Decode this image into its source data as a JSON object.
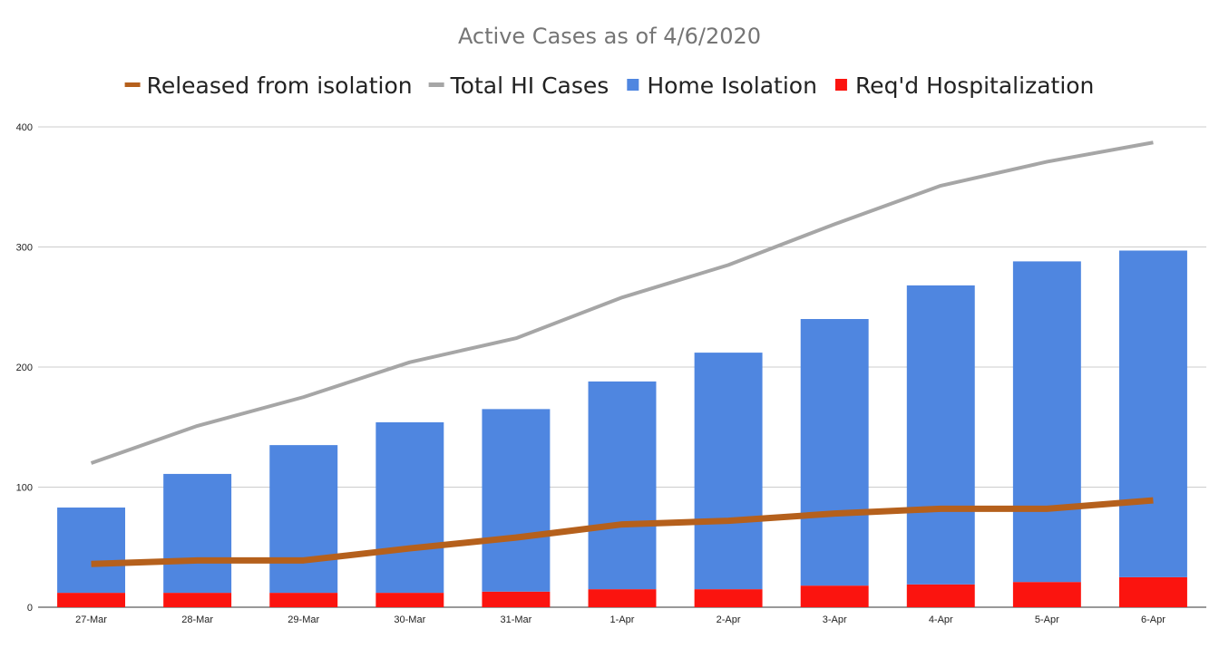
{
  "chart_data": {
    "type": "bar",
    "title": "Active Cases as of 4/6/2020",
    "stacked": true,
    "categories": [
      "27-Mar",
      "28-Mar",
      "29-Mar",
      "30-Mar",
      "31-Mar",
      "1-Apr",
      "2-Apr",
      "3-Apr",
      "4-Apr",
      "5-Apr",
      "6-Apr"
    ],
    "ylim": [
      0,
      400
    ],
    "yticks": [
      "0",
      "100",
      "200",
      "300",
      "400"
    ],
    "grid": true,
    "legend_position": "top",
    "legend": [
      {
        "label": "Released from isolation",
        "type": "line",
        "color": "#b5601c"
      },
      {
        "label": "Total HI Cases",
        "type": "line",
        "color": "#a6a6a6"
      },
      {
        "label": "Home Isolation",
        "type": "bar",
        "color": "#4f86e0"
      },
      {
        "label": "Req'd Hospitalization",
        "type": "bar",
        "color": "#fb140f"
      }
    ],
    "series": [
      {
        "name": "Req'd Hospitalization",
        "type": "bar",
        "color": "#fb140f",
        "values": [
          12,
          12,
          12,
          12,
          13,
          15,
          15,
          18,
          19,
          21,
          25
        ]
      },
      {
        "name": "Home Isolation",
        "type": "bar",
        "color": "#4f86e0",
        "values": [
          71,
          99,
          123,
          142,
          152,
          173,
          197,
          222,
          249,
          267,
          272
        ]
      },
      {
        "name": "Total HI Cases",
        "type": "line",
        "color": "#a6a6a6",
        "values": [
          120,
          151,
          175,
          204,
          224,
          258,
          285,
          319,
          351,
          371,
          387
        ]
      },
      {
        "name": "Released from isolation",
        "type": "line",
        "color": "#b5601c",
        "values": [
          36,
          39,
          39,
          49,
          58,
          69,
          72,
          78,
          82,
          82,
          89
        ]
      }
    ]
  }
}
